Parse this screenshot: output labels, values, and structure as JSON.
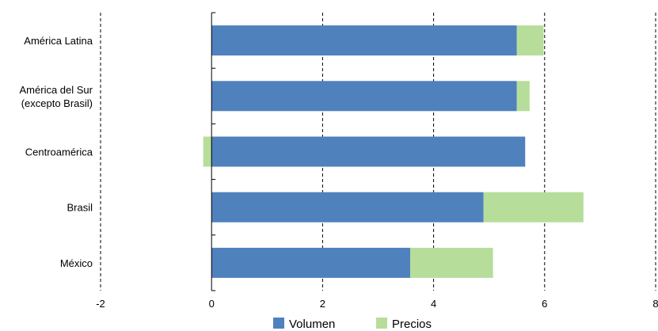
{
  "chart_data": {
    "type": "bar",
    "orientation": "horizontal",
    "stacked": true,
    "categories": [
      [
        "América Latina"
      ],
      [
        "América del Sur",
        "(excepto Brasil)"
      ],
      [
        "Centroamérica"
      ],
      [
        "Brasil"
      ],
      [
        "México"
      ]
    ],
    "series": [
      {
        "name": "Volumen",
        "color": "#4f81bd",
        "values": [
          5.5,
          5.5,
          5.65,
          4.9,
          3.58
        ]
      },
      {
        "name": "Precios",
        "color": "#b7dd9a",
        "values": [
          0.48,
          0.23,
          -0.15,
          1.8,
          1.49
        ]
      }
    ],
    "xlim": [
      -2,
      8
    ],
    "xticks": [
      -2,
      0,
      2,
      4,
      6,
      8
    ],
    "xtick_labels": [
      "-2",
      "0",
      "2",
      "4",
      "6",
      "8"
    ],
    "grid": "vertical-dashed",
    "legend_position": "bottom",
    "title": "",
    "xlabel": "",
    "ylabel": ""
  }
}
